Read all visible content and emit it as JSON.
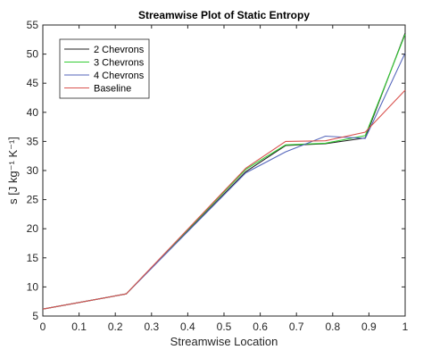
{
  "chart_data": {
    "type": "line",
    "title": "Streamwise Plot of Static Entropy",
    "xlabel": "Streamwise Location",
    "ylabel": "s [J kg⁻¹ K⁻¹]",
    "xlim": [
      0,
      1
    ],
    "ylim": [
      5,
      55
    ],
    "xticks": [
      "0",
      "0.1",
      "0.2",
      "0.3",
      "0.4",
      "0.5",
      "0.6",
      "0.7",
      "0.8",
      "0.9",
      "1"
    ],
    "yticks": [
      "5",
      "10",
      "15",
      "20",
      "25",
      "30",
      "35",
      "40",
      "45",
      "50",
      "55"
    ],
    "grid": false,
    "legend_position": "top-left",
    "series": [
      {
        "name": "2 Chevrons",
        "color": "#222222",
        "x": [
          0,
          0.23,
          0.56,
          0.67,
          0.78,
          0.89,
          1.0
        ],
        "y": [
          6.2,
          8.8,
          29.8,
          34.3,
          34.6,
          35.6,
          53.6
        ]
      },
      {
        "name": "3 Chevrons",
        "color": "#33cc33",
        "x": [
          0,
          0.23,
          0.56,
          0.67,
          0.78,
          0.89,
          1.0
        ],
        "y": [
          6.2,
          8.8,
          30.2,
          34.4,
          34.7,
          36.0,
          53.4
        ]
      },
      {
        "name": "4 Chevrons",
        "color": "#5566bb",
        "x": [
          0,
          0.23,
          0.56,
          0.67,
          0.78,
          0.89,
          1.0
        ],
        "y": [
          6.2,
          8.8,
          29.6,
          33.2,
          35.9,
          35.5,
          50.2
        ]
      },
      {
        "name": "Baseline",
        "color": "#d9534f",
        "x": [
          0,
          0.23,
          0.56,
          0.67,
          0.78,
          0.89,
          1.0
        ],
        "y": [
          6.2,
          8.8,
          30.4,
          35.0,
          35.1,
          36.6,
          43.8
        ]
      }
    ]
  }
}
